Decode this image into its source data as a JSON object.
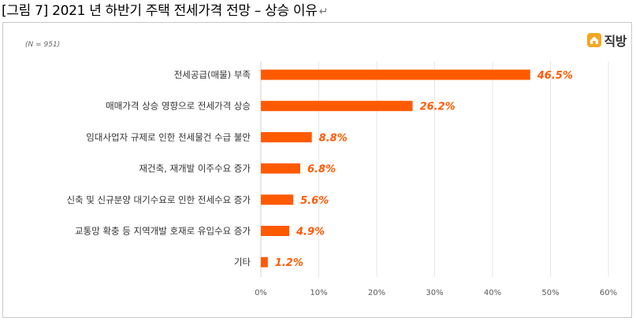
{
  "caption": {
    "text": "[그림 7] 2021 년 하반기 주택 전세가격 전망 – 상승 이유",
    "return_mark": "↵"
  },
  "note": "(N = 951)",
  "logo": {
    "brand": "직방",
    "icon": "house-logo-icon",
    "color": "#f5a623"
  },
  "colors": {
    "bar": "#ff5a00",
    "label": "#ff5a00",
    "grid": "#e6e6e6"
  },
  "chart_data": {
    "type": "bar",
    "orientation": "horizontal",
    "categories": [
      "전세공급(매물) 부족",
      "매매가격 상승 영향으로 전세가격 상승",
      "임대사업자 규제로 인한 전세물건 수급 불안",
      "재건축, 재개발 이주수요 증가",
      "신축 및 신규분양 대기수요로 인한 전세수요 증가",
      "교통망 확충 등 지역개발 호재로 유입수요 증가",
      "기타"
    ],
    "values": [
      46.5,
      26.2,
      8.8,
      6.8,
      5.6,
      4.9,
      1.2
    ],
    "value_labels": [
      "46.5%",
      "26.2%",
      "8.8%",
      "6.8%",
      "5.6%",
      "4.9%",
      "1.2%"
    ],
    "xlim": [
      0,
      60
    ],
    "ticks": [
      0,
      10,
      20,
      30,
      40,
      50,
      60
    ],
    "tick_labels": [
      "0%",
      "10%",
      "20%",
      "30%",
      "40%",
      "50%",
      "60%"
    ],
    "grid": true
  }
}
